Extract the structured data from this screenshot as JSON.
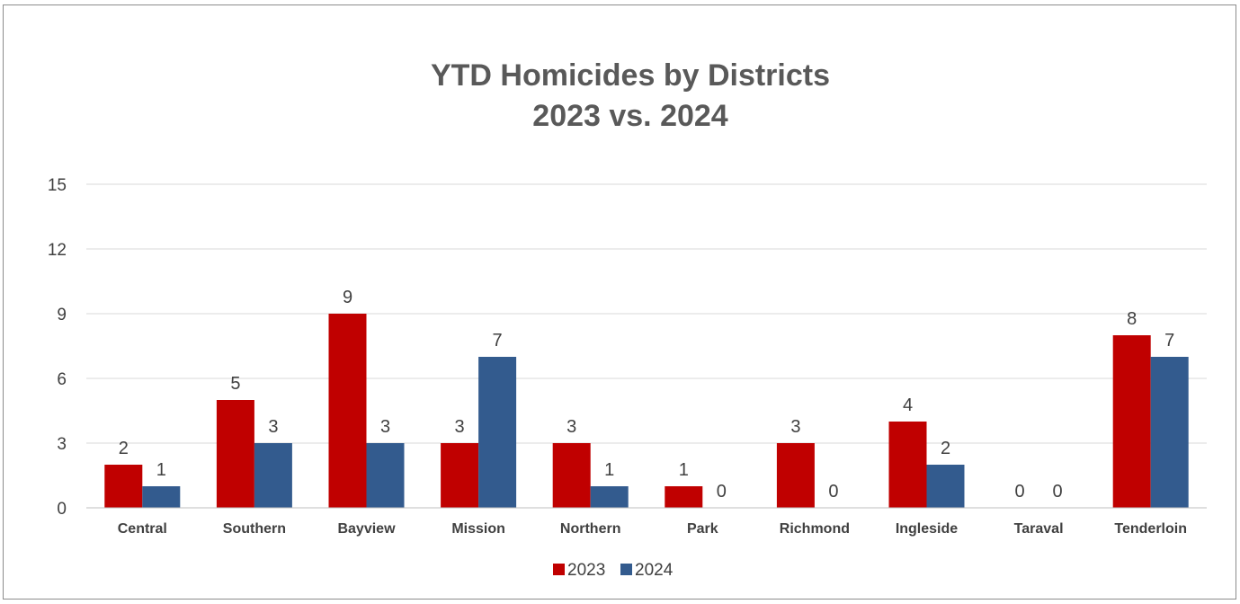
{
  "chart_data": {
    "type": "bar",
    "title": "YTD Homicides by Districts",
    "subtitle": "2023 vs. 2024",
    "xlabel": "",
    "ylabel": "",
    "ylim": [
      0,
      15
    ],
    "yticks": [
      "0",
      "3",
      "6",
      "9",
      "12",
      "15"
    ],
    "grid": true,
    "legend_position": "bottom",
    "categories": [
      "Central",
      "Southern",
      "Bayview",
      "Mission",
      "Northern",
      "Park",
      "Richmond",
      "Ingleside",
      "Taraval",
      "Tenderloin"
    ],
    "series": [
      {
        "name": "2023",
        "color": "#c00000",
        "values": [
          2,
          5,
          9,
          3,
          3,
          1,
          3,
          4,
          0,
          8
        ]
      },
      {
        "name": "2024",
        "color": "#335b8e",
        "values": [
          1,
          3,
          3,
          7,
          1,
          0,
          0,
          2,
          0,
          7
        ]
      }
    ]
  }
}
